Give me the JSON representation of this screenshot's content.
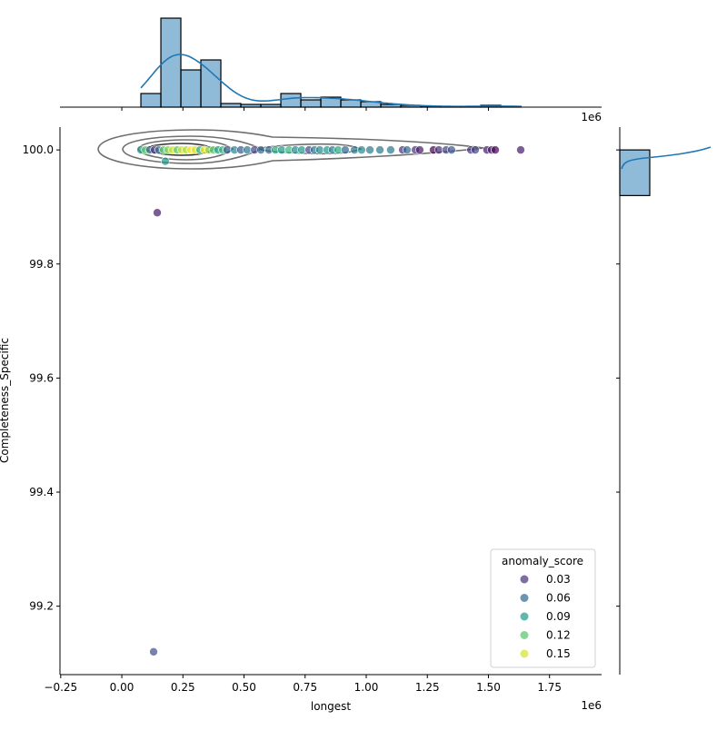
{
  "chart_data": {
    "type": "scatter",
    "subtype": "jointplot",
    "xlabel": "longest",
    "ylabel": "Completeness_Specific",
    "x_offset_label": "1e6",
    "top_offset_label": "1e6",
    "xlim": [
      -0.253,
      1.963
    ],
    "ylim": [
      99.08,
      100.04
    ],
    "x_ticks": [
      "−0.25",
      "0.00",
      "0.25",
      "0.50",
      "0.75",
      "1.00",
      "1.25",
      "1.50",
      "1.75"
    ],
    "x_tick_values": [
      -0.25,
      0,
      0.25,
      0.5,
      0.75,
      1.0,
      1.25,
      1.5,
      1.75
    ],
    "y_ticks": [
      "99.2",
      "99.4",
      "99.6",
      "99.8",
      "100.0"
    ],
    "y_tick_values": [
      99.2,
      99.4,
      99.6,
      99.8,
      100.0
    ],
    "grid": false,
    "colormap": "viridis",
    "hue": "anomaly_score",
    "legend": {
      "title": "anomaly_score",
      "placement": "lower-right",
      "entries": [
        {
          "label": "0.03",
          "value": 0.03
        },
        {
          "label": "0.06",
          "value": 0.06
        },
        {
          "label": "0.09",
          "value": 0.09
        },
        {
          "label": "0.12",
          "value": 0.12
        },
        {
          "label": "0.15",
          "value": 0.15
        }
      ]
    },
    "points": [
      [
        0.078,
        100,
        0.09
      ],
      [
        0.097,
        100,
        0.12
      ],
      [
        0.115,
        100,
        0.06
      ],
      [
        0.134,
        100,
        0.03
      ],
      [
        0.152,
        100,
        0.06
      ],
      [
        0.171,
        100,
        0.12
      ],
      [
        0.19,
        100,
        0.13
      ],
      [
        0.208,
        100,
        0.15
      ],
      [
        0.227,
        100,
        0.12
      ],
      [
        0.245,
        100,
        0.15
      ],
      [
        0.264,
        100,
        0.14
      ],
      [
        0.283,
        100,
        0.16
      ],
      [
        0.301,
        100,
        0.15
      ],
      [
        0.32,
        100,
        0.1
      ],
      [
        0.338,
        100,
        0.16
      ],
      [
        0.357,
        100,
        0.13
      ],
      [
        0.375,
        100,
        0.12
      ],
      [
        0.394,
        100,
        0.09
      ],
      [
        0.413,
        100,
        0.11
      ],
      [
        0.431,
        100,
        0.05
      ],
      [
        0.461,
        100,
        0.08
      ],
      [
        0.487,
        100,
        0.05
      ],
      [
        0.513,
        100,
        0.07
      ],
      [
        0.543,
        100,
        0.04
      ],
      [
        0.569,
        100,
        0.06
      ],
      [
        0.602,
        100,
        0.06
      ],
      [
        0.628,
        100,
        0.1
      ],
      [
        0.654,
        100,
        0.09
      ],
      [
        0.684,
        100,
        0.11
      ],
      [
        0.71,
        100,
        0.08
      ],
      [
        0.736,
        100,
        0.09
      ],
      [
        0.766,
        100,
        0.04
      ],
      [
        0.788,
        100,
        0.07
      ],
      [
        0.81,
        100,
        0.08
      ],
      [
        0.84,
        100,
        0.09
      ],
      [
        0.862,
        100,
        0.07
      ],
      [
        0.885,
        100,
        0.1
      ],
      [
        0.914,
        100,
        0.06
      ],
      [
        0.952,
        100,
        0.07
      ],
      [
        0.981,
        100,
        0.08
      ],
      [
        1.015,
        100,
        0.07
      ],
      [
        1.056,
        100,
        0.07
      ],
      [
        1.1,
        100,
        0.07
      ],
      [
        1.149,
        100,
        0.03
      ],
      [
        1.167,
        100,
        0.06
      ],
      [
        1.201,
        100,
        0.03
      ],
      [
        1.219,
        100,
        0.02
      ],
      [
        1.275,
        100,
        0.01
      ],
      [
        1.297,
        100,
        0.03
      ],
      [
        1.327,
        100,
        0.04
      ],
      [
        1.349,
        100,
        0.05
      ],
      [
        1.428,
        100,
        0.03
      ],
      [
        1.446,
        100,
        0.04
      ],
      [
        1.494,
        100,
        0.02
      ],
      [
        1.513,
        100,
        0.02
      ],
      [
        1.528,
        100,
        0.01
      ],
      [
        1.632,
        100,
        0.02
      ],
      [
        0.178,
        99.98,
        0.09
      ],
      [
        0.145,
        99.89,
        0.02
      ],
      [
        0.13,
        99.12,
        0.045
      ]
    ],
    "top_histogram": {
      "bin_start": 0.078,
      "bin_width": 0.0818,
      "counts": [
        15,
        98,
        41,
        52,
        4,
        3,
        3,
        15,
        8,
        11,
        8,
        6,
        3,
        2,
        1,
        0.5,
        0.3,
        2,
        1
      ],
      "color": "#1f77b4"
    },
    "right_histogram": {
      "bins": [
        [
          99.92,
          100.0
        ]
      ],
      "counts": [
        1
      ],
      "color": "#1f77b4"
    }
  }
}
